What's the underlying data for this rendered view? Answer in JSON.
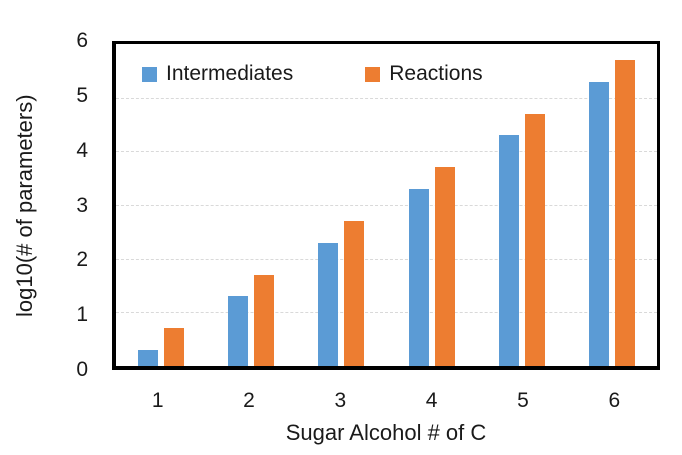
{
  "chart_data": {
    "type": "bar",
    "title": "",
    "categories": [
      "1",
      "2",
      "3",
      "4",
      "5",
      "6"
    ],
    "series": [
      {
        "name": "Intermediates",
        "color": "#5B9BD5",
        "values": [
          0.3,
          1.3,
          2.3,
          3.3,
          4.3,
          5.3
        ]
      },
      {
        "name": "Reactions",
        "color": "#ED7D31",
        "values": [
          0.7,
          1.7,
          2.7,
          3.7,
          4.7,
          5.7
        ]
      }
    ],
    "xlabel": "Sugar Alcohol # of C",
    "ylabel": "log10(# of parameters)",
    "ylim": [
      0,
      6
    ],
    "yticks": [
      0,
      1,
      2,
      3,
      4,
      5,
      6
    ],
    "grid": "horizontal-dashed",
    "legend_position": "top-inside"
  },
  "colors": {
    "background": "#ffffff",
    "axis_border": "#000000",
    "gridline": "#d9d9d9",
    "text": "#1a1a1a",
    "series_blue": "#5B9BD5",
    "series_orange": "#ED7D31"
  }
}
